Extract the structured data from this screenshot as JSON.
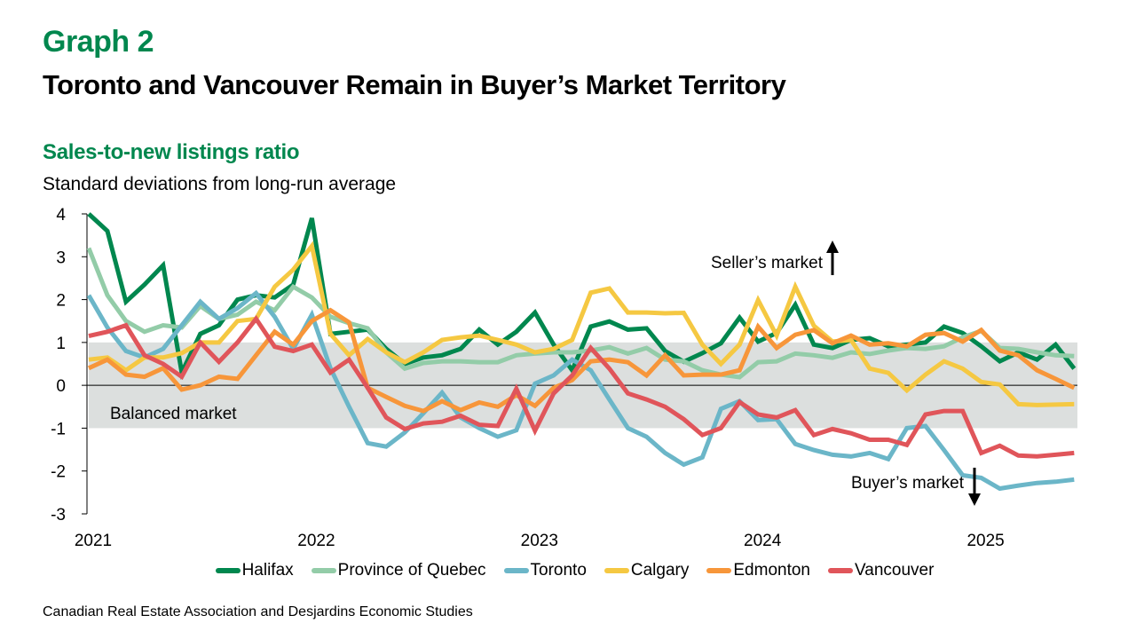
{
  "header": {
    "graph_number": "Graph 2",
    "title": "Toronto and Vancouver Remain in Buyer’s Market Territory",
    "subtitle": "Sales-to-new listings ratio",
    "units": "Standard deviations from long-run average"
  },
  "source": "Canadian Real Estate Association and Desjardins Economic Studies",
  "chart_data": {
    "type": "line",
    "title": "Sales-to-new listings ratio",
    "ylabel": "Standard deviations from long-run average",
    "xlabel": "",
    "x_start": "2021-01",
    "x_frequency": "monthly",
    "x_tick_labels": [
      "2021",
      "2022",
      "2023",
      "2024",
      "2025"
    ],
    "ylim": [
      -3,
      4
    ],
    "y_ticks": [
      4,
      3,
      2,
      1,
      0,
      -1,
      -2,
      -3
    ],
    "grid": false,
    "legend_position": "bottom",
    "bands": [
      {
        "label": "Balanced market",
        "from": -1,
        "to": 1,
        "color": "#dcdfde"
      }
    ],
    "annotations": [
      {
        "text": "Seller’s market",
        "arrow": "up",
        "y_value": 3.0
      },
      {
        "text": "Buyer’s market",
        "arrow": "down",
        "y_value": -2.3
      }
    ],
    "series": [
      {
        "name": "Halifax",
        "color": "#00874e",
        "values": [
          4.3,
          3.6,
          1.95,
          2.35,
          2.8,
          0.3,
          1.2,
          1.4,
          2.0,
          2.1,
          2.05,
          2.35,
          3.9,
          1.2,
          1.25,
          1.3,
          0.85,
          0.5,
          0.65,
          0.7,
          0.85,
          1.3,
          0.95,
          1.25,
          1.7,
          0.95,
          0.35,
          1.37,
          1.49,
          1.3,
          1.33,
          0.8,
          0.55,
          0.75,
          0.98,
          1.58,
          1.02,
          1.22,
          1.88,
          0.95,
          0.87,
          1.06,
          1.1,
          0.91,
          0.95,
          1.0,
          1.37,
          1.22,
          0.91,
          0.56,
          0.77,
          0.6,
          0.95,
          0.39
        ]
      },
      {
        "name": "Province of Quebec",
        "color": "#93cca8",
        "values": [
          3.2,
          2.1,
          1.5,
          1.25,
          1.4,
          1.35,
          1.85,
          1.55,
          1.65,
          1.95,
          1.75,
          2.3,
          2.05,
          1.6,
          1.45,
          1.33,
          0.77,
          0.39,
          0.52,
          0.56,
          0.56,
          0.54,
          0.54,
          0.7,
          0.74,
          0.77,
          0.77,
          0.81,
          0.89,
          0.74,
          0.87,
          0.6,
          0.56,
          0.35,
          0.25,
          0.19,
          0.54,
          0.56,
          0.74,
          0.7,
          0.64,
          0.77,
          0.73,
          0.81,
          0.87,
          0.85,
          0.91,
          1.12,
          1.27,
          0.87,
          0.85,
          0.77,
          0.7,
          0.68
        ]
      },
      {
        "name": "Toronto",
        "color": "#6bb6c8",
        "values": [
          2.1,
          1.35,
          0.8,
          0.65,
          0.85,
          1.4,
          1.95,
          1.55,
          1.8,
          2.15,
          1.6,
          0.85,
          1.65,
          0.4,
          -0.5,
          -1.35,
          -1.43,
          -1.1,
          -0.65,
          -0.17,
          -0.75,
          -1.0,
          -1.2,
          -1.05,
          0.04,
          0.23,
          0.6,
          0.35,
          -0.33,
          -1.0,
          -1.2,
          -1.58,
          -1.85,
          -1.68,
          -0.55,
          -0.37,
          -0.81,
          -0.79,
          -1.37,
          -1.51,
          -1.62,
          -1.66,
          -1.58,
          -1.72,
          -1.0,
          -0.95,
          -1.51,
          -2.1,
          -2.16,
          -2.41,
          -2.34,
          -2.28,
          -2.25,
          -2.2
        ]
      },
      {
        "name": "Calgary",
        "color": "#f5c842",
        "values": [
          0.6,
          0.65,
          0.35,
          0.65,
          0.65,
          0.75,
          1.0,
          1.0,
          1.5,
          1.55,
          2.3,
          2.7,
          3.25,
          1.2,
          0.7,
          1.08,
          0.77,
          0.54,
          0.77,
          1.06,
          1.12,
          1.16,
          1.06,
          0.95,
          0.77,
          0.85,
          1.06,
          2.16,
          2.26,
          1.7,
          1.7,
          1.68,
          1.69,
          0.95,
          0.5,
          0.95,
          1.99,
          1.16,
          2.3,
          1.39,
          1.02,
          1.06,
          0.39,
          0.29,
          -0.12,
          0.25,
          0.56,
          0.39,
          0.08,
          0.02,
          -0.44,
          -0.46,
          -0.45,
          -0.44
        ]
      },
      {
        "name": "Edmonton",
        "color": "#f7963a",
        "values": [
          0.4,
          0.6,
          0.25,
          0.2,
          0.4,
          -0.1,
          0.0,
          0.2,
          0.15,
          0.7,
          1.25,
          0.95,
          1.5,
          1.75,
          1.47,
          -0.06,
          -0.27,
          -0.48,
          -0.6,
          -0.37,
          -0.58,
          -0.4,
          -0.5,
          -0.23,
          -0.48,
          -0.06,
          0.12,
          0.56,
          0.6,
          0.54,
          0.23,
          0.7,
          0.23,
          0.25,
          0.25,
          0.35,
          1.37,
          0.87,
          1.18,
          1.29,
          0.98,
          1.16,
          0.95,
          0.98,
          0.91,
          1.18,
          1.22,
          1.02,
          1.29,
          0.81,
          0.7,
          0.35,
          0.15,
          -0.06
        ]
      },
      {
        "name": "Vancouver",
        "color": "#e0555a",
        "values": [
          1.15,
          1.25,
          1.4,
          0.7,
          0.5,
          0.2,
          1.0,
          0.55,
          1.0,
          1.55,
          0.9,
          0.8,
          0.95,
          0.3,
          0.6,
          -0.06,
          -0.75,
          -1.02,
          -0.89,
          -0.85,
          -0.71,
          -0.92,
          -0.95,
          -0.08,
          -1.06,
          -0.19,
          0.23,
          0.87,
          0.39,
          -0.19,
          -0.33,
          -0.5,
          -0.79,
          -1.16,
          -1.0,
          -0.39,
          -0.68,
          -0.75,
          -0.58,
          -1.16,
          -1.02,
          -1.12,
          -1.27,
          -1.27,
          -1.39,
          -0.68,
          -0.6,
          -0.6,
          -1.58,
          -1.41,
          -1.64,
          -1.66,
          -1.62,
          -1.58
        ]
      }
    ]
  }
}
